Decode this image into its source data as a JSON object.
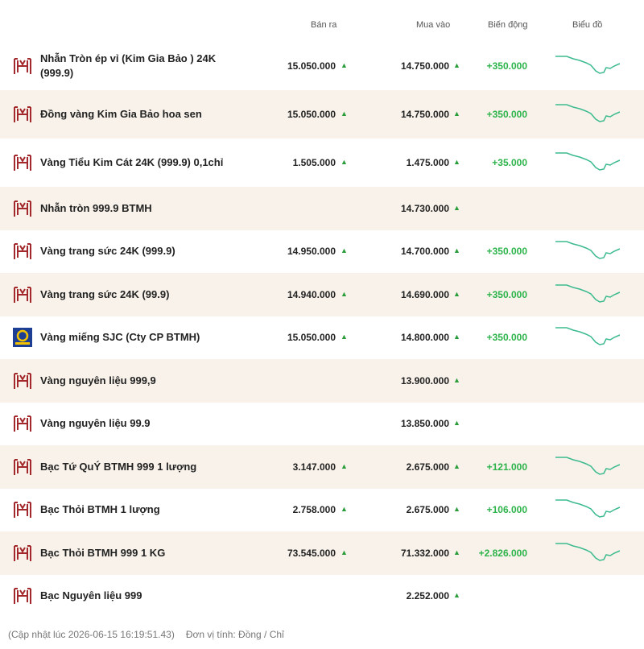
{
  "header": {
    "columns": [
      "Bán ra",
      "Mua vào",
      "Biến động",
      "Biểu đồ"
    ]
  },
  "table": {
    "rows": [
      {
        "name": "Nhẫn Tròn ép vỉ (Kim Gia Bảo ) 24K (999.9)",
        "sell": "15.050.000",
        "buy": "14.750.000",
        "change": "+350.000"
      },
      {
        "name": "Đồng vàng Kim Gia Bảo hoa sen",
        "sell": "15.050.000",
        "buy": "14.750.000",
        "change": "+350.000"
      },
      {
        "name": "Vàng Tiểu Kim Cát 24K (999.9) 0,1chỉ",
        "sell": "1.505.000",
        "buy": "1.475.000",
        "change": "+35.000"
      },
      {
        "name": "Nhẫn tròn 999.9 BTMH",
        "buy": "14.730.000"
      },
      {
        "name": "Vàng trang sức 24K (999.9)",
        "sell": "14.950.000",
        "buy": "14.700.000",
        "change": "+350.000"
      },
      {
        "name": "Vàng trang sức 24K (99.9)",
        "sell": "14.940.000",
        "buy": "14.690.000",
        "change": "+350.000"
      },
      {
        "name": "Vàng miếng SJC (Cty CP BTMH)",
        "sell": "15.050.000",
        "buy": "14.800.000",
        "change": "+350.000"
      },
      {
        "name": "Vàng nguyên liệu 999,9",
        "buy": "13.900.000"
      },
      {
        "name": "Vàng nguyên liệu 99.9",
        "buy": "13.850.000"
      },
      {
        "name": "Bạc Tứ QuÝ BTMH 999 1 lượng",
        "sell": "3.147.000",
        "buy": "2.675.000",
        "change": "+121.000"
      },
      {
        "name": "Bạc Thỏi BTMH 1 lượng",
        "sell": "2.758.000",
        "buy": "2.675.000",
        "change": "+106.000"
      },
      {
        "name": "Bạc Thỏi BTMH 999 1 KG",
        "sell": "73.545.000",
        "buy": "71.332.000",
        "change": "+2.826.000"
      },
      {
        "name": "Bạc Nguyên liệu 999",
        "buy": "2.252.000"
      }
    ]
  },
  "footer": {
    "updated": "(Cập nhật lúc 2026-06-15 16:19:51.43)",
    "unit": "Đơn vị tính: Đồng / Chỉ"
  }
}
